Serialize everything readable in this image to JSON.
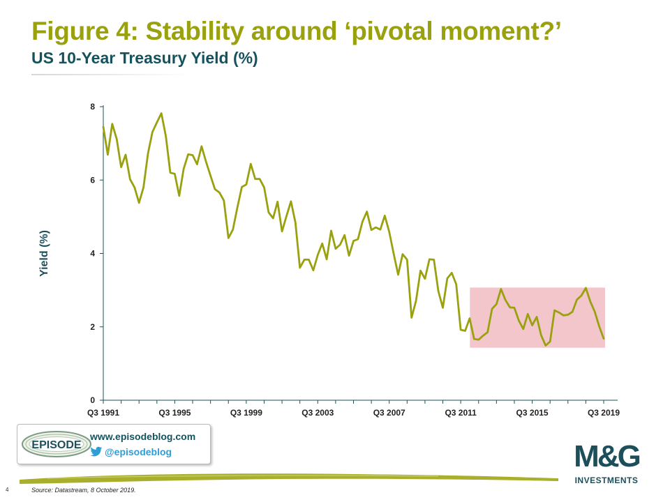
{
  "header": {
    "title": "Figure 4: Stability around ‘pivotal moment?’",
    "subtitle": "US 10-Year Treasury Yield (%)"
  },
  "chart_data": {
    "type": "line",
    "title": "",
    "xlabel": "",
    "ylabel": "Yield (%)",
    "ylim": [
      0,
      8
    ],
    "yticks": [
      0,
      2,
      4,
      6,
      8
    ],
    "x_tick_labels": [
      "Q3 1991",
      "Q3 1995",
      "Q3 1999",
      "Q3 2003",
      "Q3 2007",
      "Q3 2011",
      "Q3 2015",
      "Q3 2019"
    ],
    "x_range": [
      "Q3 1991",
      "Q3 2019"
    ],
    "frequency": "quarterly",
    "grid": false,
    "legend": "none",
    "highlight": {
      "x_start": "Q2 2012",
      "x_end": "Q3 2019",
      "y_range": [
        1.43,
        3.07
      ],
      "color": "#f2c6cb"
    },
    "series": [
      {
        "color": "#9aa10e",
        "x": [
          "Q3 1991",
          "Q4 1991",
          "Q1 1992",
          "Q2 1992",
          "Q3 1992",
          "Q4 1992",
          "Q1 1993",
          "Q2 1993",
          "Q3 1993",
          "Q4 1993",
          "Q1 1994",
          "Q2 1994",
          "Q3 1994",
          "Q4 1994",
          "Q1 1995",
          "Q2 1995",
          "Q3 1995",
          "Q4 1995",
          "Q1 1996",
          "Q2 1996",
          "Q3 1996",
          "Q4 1996",
          "Q1 1997",
          "Q2 1997",
          "Q3 1997",
          "Q4 1997",
          "Q1 1998",
          "Q2 1998",
          "Q3 1998",
          "Q4 1998",
          "Q1 1999",
          "Q2 1999",
          "Q3 1999",
          "Q4 1999",
          "Q1 2000",
          "Q2 2000",
          "Q3 2000",
          "Q4 2000",
          "Q1 2001",
          "Q2 2001",
          "Q3 2001",
          "Q4 2001",
          "Q1 2002",
          "Q2 2002",
          "Q3 2002",
          "Q4 2002",
          "Q1 2003",
          "Q2 2003",
          "Q3 2003",
          "Q4 2003",
          "Q1 2004",
          "Q2 2004",
          "Q3 2004",
          "Q4 2004",
          "Q1 2005",
          "Q2 2005",
          "Q3 2005",
          "Q4 2005",
          "Q1 2006",
          "Q2 2006",
          "Q3 2006",
          "Q4 2006",
          "Q1 2007",
          "Q2 2007",
          "Q3 2007",
          "Q4 2007",
          "Q1 2008",
          "Q2 2008",
          "Q3 2008",
          "Q4 2008",
          "Q1 2009",
          "Q2 2009",
          "Q3 2009",
          "Q4 2009",
          "Q1 2010",
          "Q2 2010",
          "Q3 2010",
          "Q4 2010",
          "Q1 2011",
          "Q2 2011",
          "Q3 2011",
          "Q4 2011",
          "Q1 2012",
          "Q2 2012",
          "Q3 2012",
          "Q4 2012",
          "Q1 2013",
          "Q2 2013",
          "Q3 2013",
          "Q4 2013",
          "Q1 2014",
          "Q2 2014",
          "Q3 2014",
          "Q4 2014",
          "Q1 2015",
          "Q2 2015",
          "Q3 2015",
          "Q4 2015",
          "Q1 2016",
          "Q2 2016",
          "Q3 2016",
          "Q4 2016",
          "Q1 2017",
          "Q2 2017",
          "Q3 2017",
          "Q4 2017",
          "Q1 2018",
          "Q2 2018",
          "Q3 2018",
          "Q4 2018",
          "Q1 2019",
          "Q2 2019",
          "Q3 2019"
        ],
        "values": [
          7.45,
          6.69,
          7.53,
          7.12,
          6.35,
          6.69,
          6.02,
          5.8,
          5.38,
          5.8,
          6.72,
          7.31,
          7.57,
          7.82,
          7.2,
          6.2,
          6.17,
          5.57,
          6.31,
          6.7,
          6.68,
          6.43,
          6.92,
          6.5,
          6.12,
          5.75,
          5.66,
          5.44,
          4.42,
          4.65,
          5.25,
          5.81,
          5.88,
          6.44,
          6.03,
          6.03,
          5.8,
          5.12,
          4.96,
          5.41,
          4.6,
          5.02,
          5.42,
          4.84,
          3.61,
          3.83,
          3.83,
          3.54,
          3.96,
          4.27,
          3.84,
          4.62,
          4.13,
          4.24,
          4.5,
          3.94,
          4.34,
          4.39,
          4.86,
          5.14,
          4.64,
          4.71,
          4.65,
          5.03,
          4.59,
          3.99,
          3.42,
          3.98,
          3.83,
          2.25,
          2.71,
          3.53,
          3.31,
          3.84,
          3.83,
          2.97,
          2.52,
          3.32,
          3.47,
          3.16,
          1.92,
          1.89,
          2.23,
          1.67,
          1.65,
          1.76,
          1.85,
          2.49,
          2.62,
          3.03,
          2.73,
          2.53,
          2.52,
          2.17,
          1.94,
          2.35,
          2.04,
          2.27,
          1.77,
          1.49,
          1.6,
          2.45,
          2.39,
          2.31,
          2.33,
          2.41,
          2.74,
          2.85,
          3.06,
          2.69,
          2.41,
          2.01,
          1.68
        ]
      }
    ]
  },
  "logos": {
    "episode": {
      "logo_text": "EPISODE",
      "url": "www.episodeblog.com",
      "twitter": "@episodeblog"
    },
    "mg": {
      "mark": "M&G",
      "sub": "INVESTMENTS"
    }
  },
  "footer": {
    "page_number": "4",
    "source": "Source: Datastream, 8 October 2019."
  }
}
